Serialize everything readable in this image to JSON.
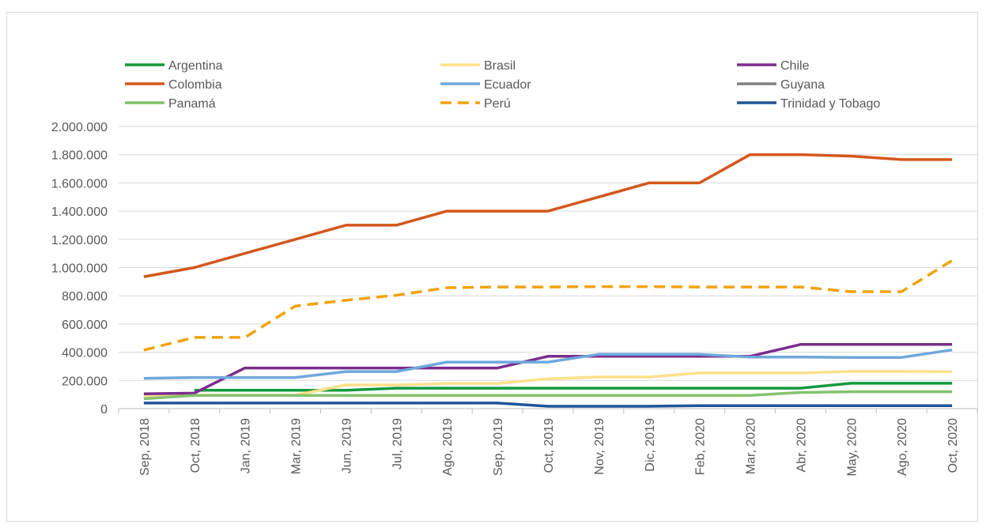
{
  "chart_data": {
    "type": "line",
    "title": "",
    "xlabel": "",
    "ylabel": "",
    "categories": [
      "Sep, 2018",
      "Oct, 2018",
      "Jan, 2019",
      "Mar, 2019",
      "Jun, 2019",
      "Jul, 2019",
      "Ago, 2019",
      "Sep, 2019",
      "Oct, 2019",
      "Nov, 2019",
      "Dic, 2019",
      "Feb, 2020",
      "Mar, 2020",
      "Abr, 2020",
      "May, 2020",
      "Ago, 2020",
      "Oct, 2020"
    ],
    "ylim": [
      0,
      2000000
    ],
    "yticks": [
      0,
      200000,
      400000,
      600000,
      800000,
      1000000,
      1200000,
      1400000,
      1600000,
      1800000,
      2000000
    ],
    "ytick_labels": [
      "0",
      "200.000",
      "400.000",
      "600.000",
      "800.000",
      "1.000.000",
      "1.200.000",
      "1.400.000",
      "1.600.000",
      "1.800.000",
      "2.000.000"
    ],
    "grid": true,
    "legend_position": "top",
    "series": [
      {
        "name": "Argentina",
        "color": "#129a3c",
        "dash": false,
        "values": [
          null,
          130000,
          130000,
          130000,
          130000,
          145000,
          145000,
          145000,
          145000,
          145000,
          145000,
          145000,
          145000,
          145000,
          180000,
          180000,
          180000
        ]
      },
      {
        "name": "Brasil",
        "color": "#ffe08a",
        "dash": false,
        "values": [
          85000,
          96000,
          96000,
          96000,
          168000,
          168000,
          178000,
          178000,
          212000,
          224000,
          224000,
          253000,
          253000,
          253000,
          264000,
          264000,
          262000
        ]
      },
      {
        "name": "Chile",
        "color": "#7b2d8e",
        "dash": false,
        "values": [
          105000,
          110000,
          288000,
          288000,
          288000,
          288000,
          288000,
          288000,
          371000,
          371000,
          371000,
          371000,
          371000,
          455000,
          455000,
          455000,
          455000
        ]
      },
      {
        "name": "Colombia",
        "color": "#d4571d",
        "dash": false,
        "values": [
          935000,
          1000000,
          1100000,
          1200000,
          1300000,
          1300000,
          1400000,
          1400000,
          1400000,
          1500000,
          1600000,
          1600000,
          1800000,
          1800000,
          1790000,
          1765000,
          1765000
        ]
      },
      {
        "name": "Ecuador",
        "color": "#6fa8dc",
        "dash": false,
        "values": [
          215000,
          221000,
          221000,
          221000,
          263000,
          263000,
          330000,
          330000,
          330000,
          385000,
          385000,
          385000,
          366000,
          366000,
          363000,
          363000,
          416000
        ]
      },
      {
        "name": "Guyana",
        "color": "#808080",
        "dash": false,
        "values": [
          null,
          null,
          null,
          null,
          null,
          null,
          null,
          null,
          null,
          null,
          null,
          null,
          null,
          null,
          null,
          null,
          null
        ]
      },
      {
        "name": "Panamá",
        "color": "#82c36e",
        "dash": false,
        "values": [
          70000,
          94000,
          94000,
          94000,
          94000,
          94000,
          94000,
          94000,
          94000,
          94000,
          94000,
          94000,
          94000,
          115000,
          120000,
          120000,
          120000
        ]
      },
      {
        "name": "Perú",
        "color": "#f2a20c",
        "dash": true,
        "values": [
          415000,
          505000,
          505000,
          727000,
          768000,
          804000,
          857000,
          862000,
          862000,
          865000,
          865000,
          862000,
          862000,
          862000,
          829000,
          829000,
          1050000
        ]
      },
      {
        "name": "Trinidad y Tobago",
        "color": "#1f5596",
        "dash": false,
        "values": [
          40000,
          40000,
          40000,
          40000,
          40000,
          40000,
          40000,
          40000,
          17000,
          17000,
          17000,
          21000,
          21000,
          21000,
          21000,
          21000,
          21000
        ]
      }
    ]
  }
}
